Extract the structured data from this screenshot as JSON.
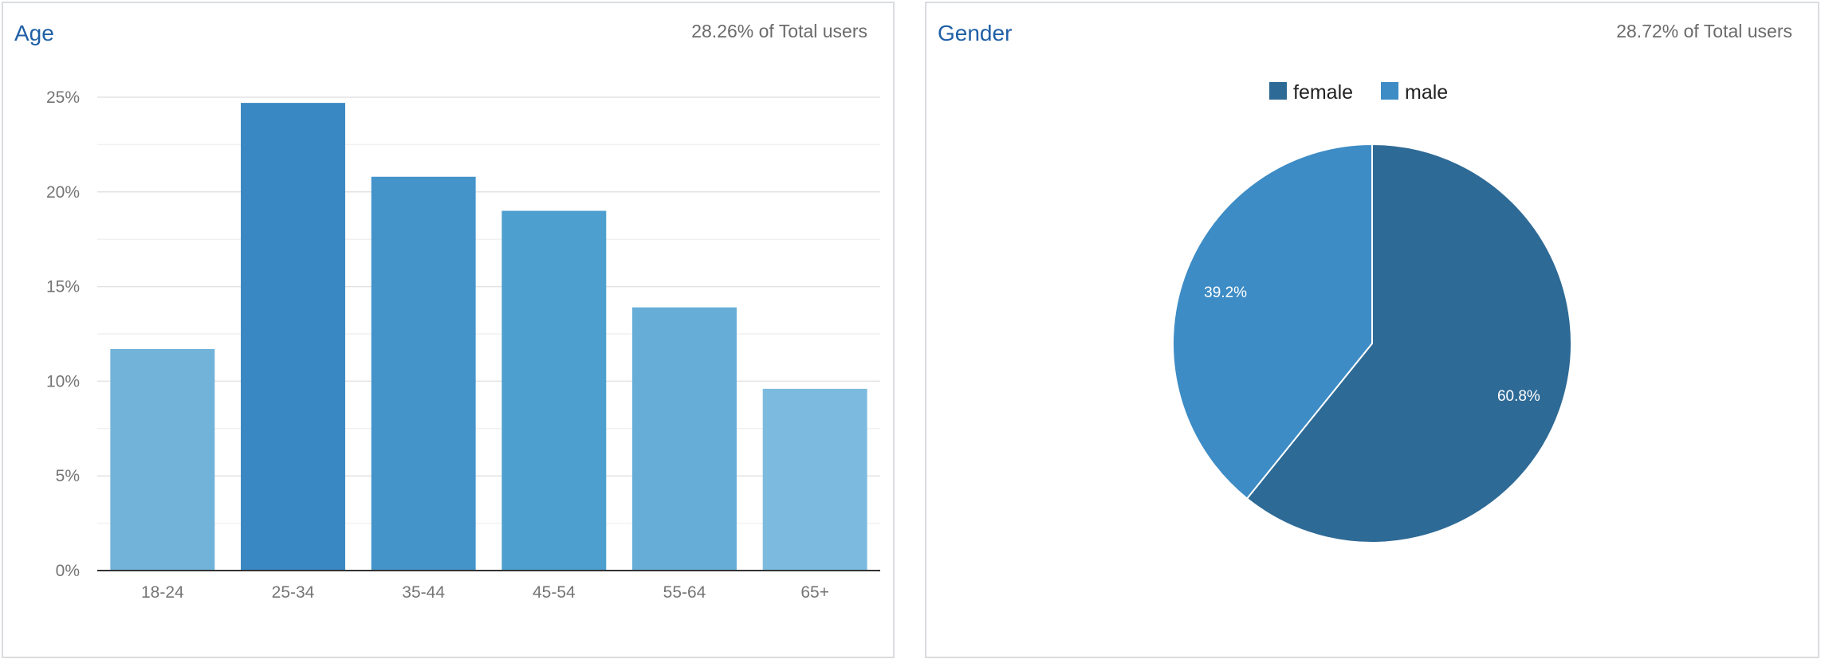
{
  "charts": {
    "age": {
      "title": "Age",
      "subtitle": "28.26% of Total users"
    },
    "gender": {
      "title": "Gender",
      "subtitle": "28.72% of Total users"
    }
  },
  "chart_data": [
    {
      "type": "bar",
      "title": "Age",
      "subtitle": "28.26% of Total users",
      "categories": [
        "18-24",
        "25-34",
        "35-44",
        "45-54",
        "55-64",
        "65+"
      ],
      "values": [
        11.7,
        24.7,
        20.8,
        19.0,
        13.9,
        9.6
      ],
      "colors": [
        "#72b3d9",
        "#3a88c3",
        "#4494ca",
        "#4d9fcf",
        "#66aed7",
        "#7cbbdf"
      ],
      "ylim": [
        0,
        25
      ],
      "yticks": [
        0,
        5,
        10,
        15,
        20,
        25
      ],
      "ytick_labels": [
        "0%",
        "5%",
        "10%",
        "15%",
        "20%",
        "25%"
      ],
      "grid": true,
      "xlabel": "",
      "ylabel": ""
    },
    {
      "type": "pie",
      "title": "Gender",
      "subtitle": "28.72% of Total users",
      "categories": [
        "female",
        "male"
      ],
      "values": [
        60.8,
        39.2
      ],
      "labels": [
        "60.8%",
        "39.2%"
      ],
      "colors": [
        "#2e6a96",
        "#3d8cc5"
      ],
      "legend_position": "top-center"
    }
  ]
}
